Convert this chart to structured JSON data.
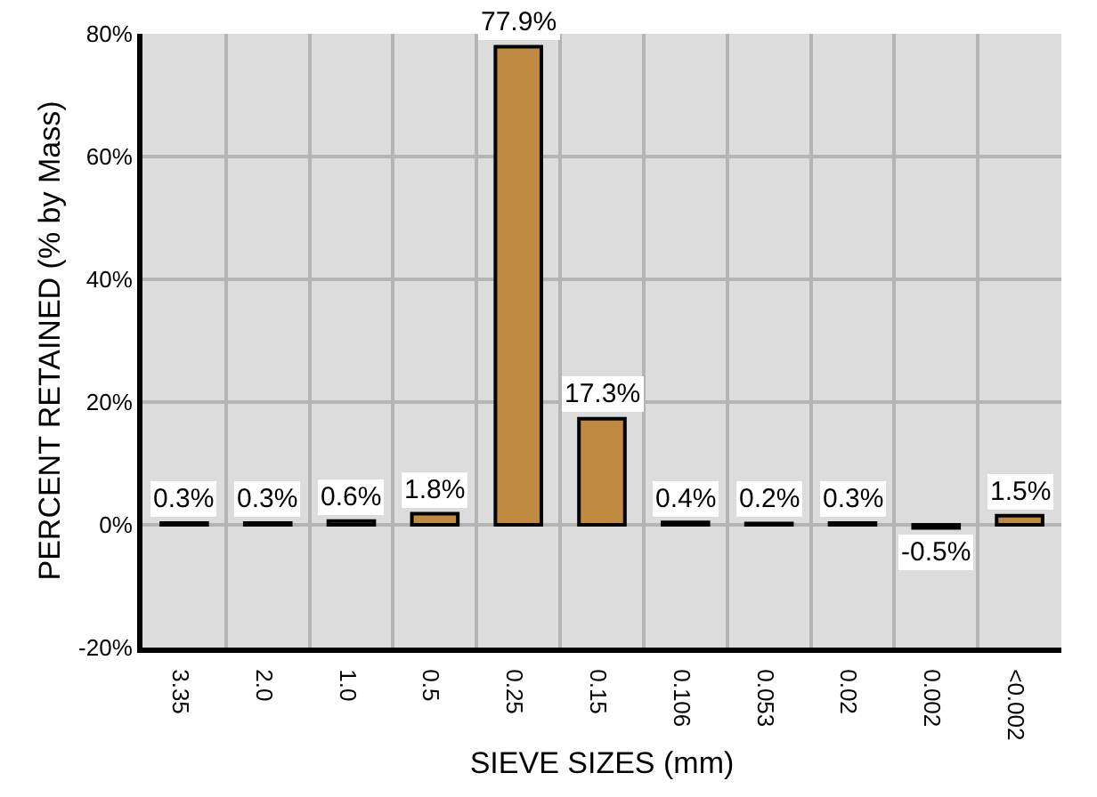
{
  "chart_data": {
    "type": "bar",
    "xlabel": "SIEVE SIZES (mm)",
    "ylabel": "PERCENT RETAINED (% by Mass)",
    "categories": [
      "3.35",
      "2.0",
      "1.0",
      "0.5",
      "0.25",
      "0.15",
      "0.106",
      "0.053",
      "0.02",
      "0.002",
      "<0.002"
    ],
    "values": [
      0.3,
      0.3,
      0.6,
      1.8,
      77.9,
      17.3,
      0.4,
      0.2,
      0.3,
      -0.5,
      1.5
    ],
    "value_labels": [
      "0.3%",
      "0.3%",
      "0.6%",
      "1.8%",
      "77.9%",
      "17.3%",
      "0.4%",
      "0.2%",
      "0.3%",
      "-0.5%",
      "1.5%"
    ],
    "color": "#c08a40",
    "ylim": [
      -20,
      80
    ],
    "yticks": [
      {
        "value": -20,
        "label": "-20%"
      },
      {
        "value": 0,
        "label": "0%"
      },
      {
        "value": 20,
        "label": "20%"
      },
      {
        "value": 40,
        "label": "40%"
      },
      {
        "value": 60,
        "label": "60%"
      },
      {
        "value": 80,
        "label": "80%"
      }
    ],
    "grid": true,
    "legend": false
  }
}
